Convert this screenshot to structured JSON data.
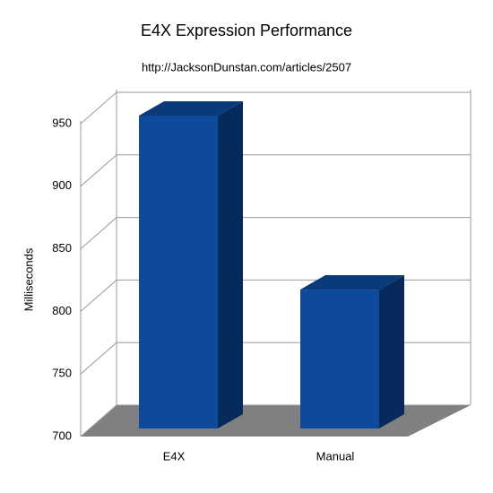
{
  "chart_data": {
    "type": "bar3d",
    "title": "E4X Expression Performance",
    "subtitle": "http://JacksonDunstan.com/articles/2507",
    "y_label": "Milliseconds",
    "categories": [
      "E4X",
      "Manual"
    ],
    "values": [
      950,
      811
    ],
    "color": "#0d4a9c",
    "ylim": [
      700,
      950
    ],
    "yticks": [
      700,
      750,
      800,
      850,
      900,
      950
    ],
    "grid": true
  }
}
